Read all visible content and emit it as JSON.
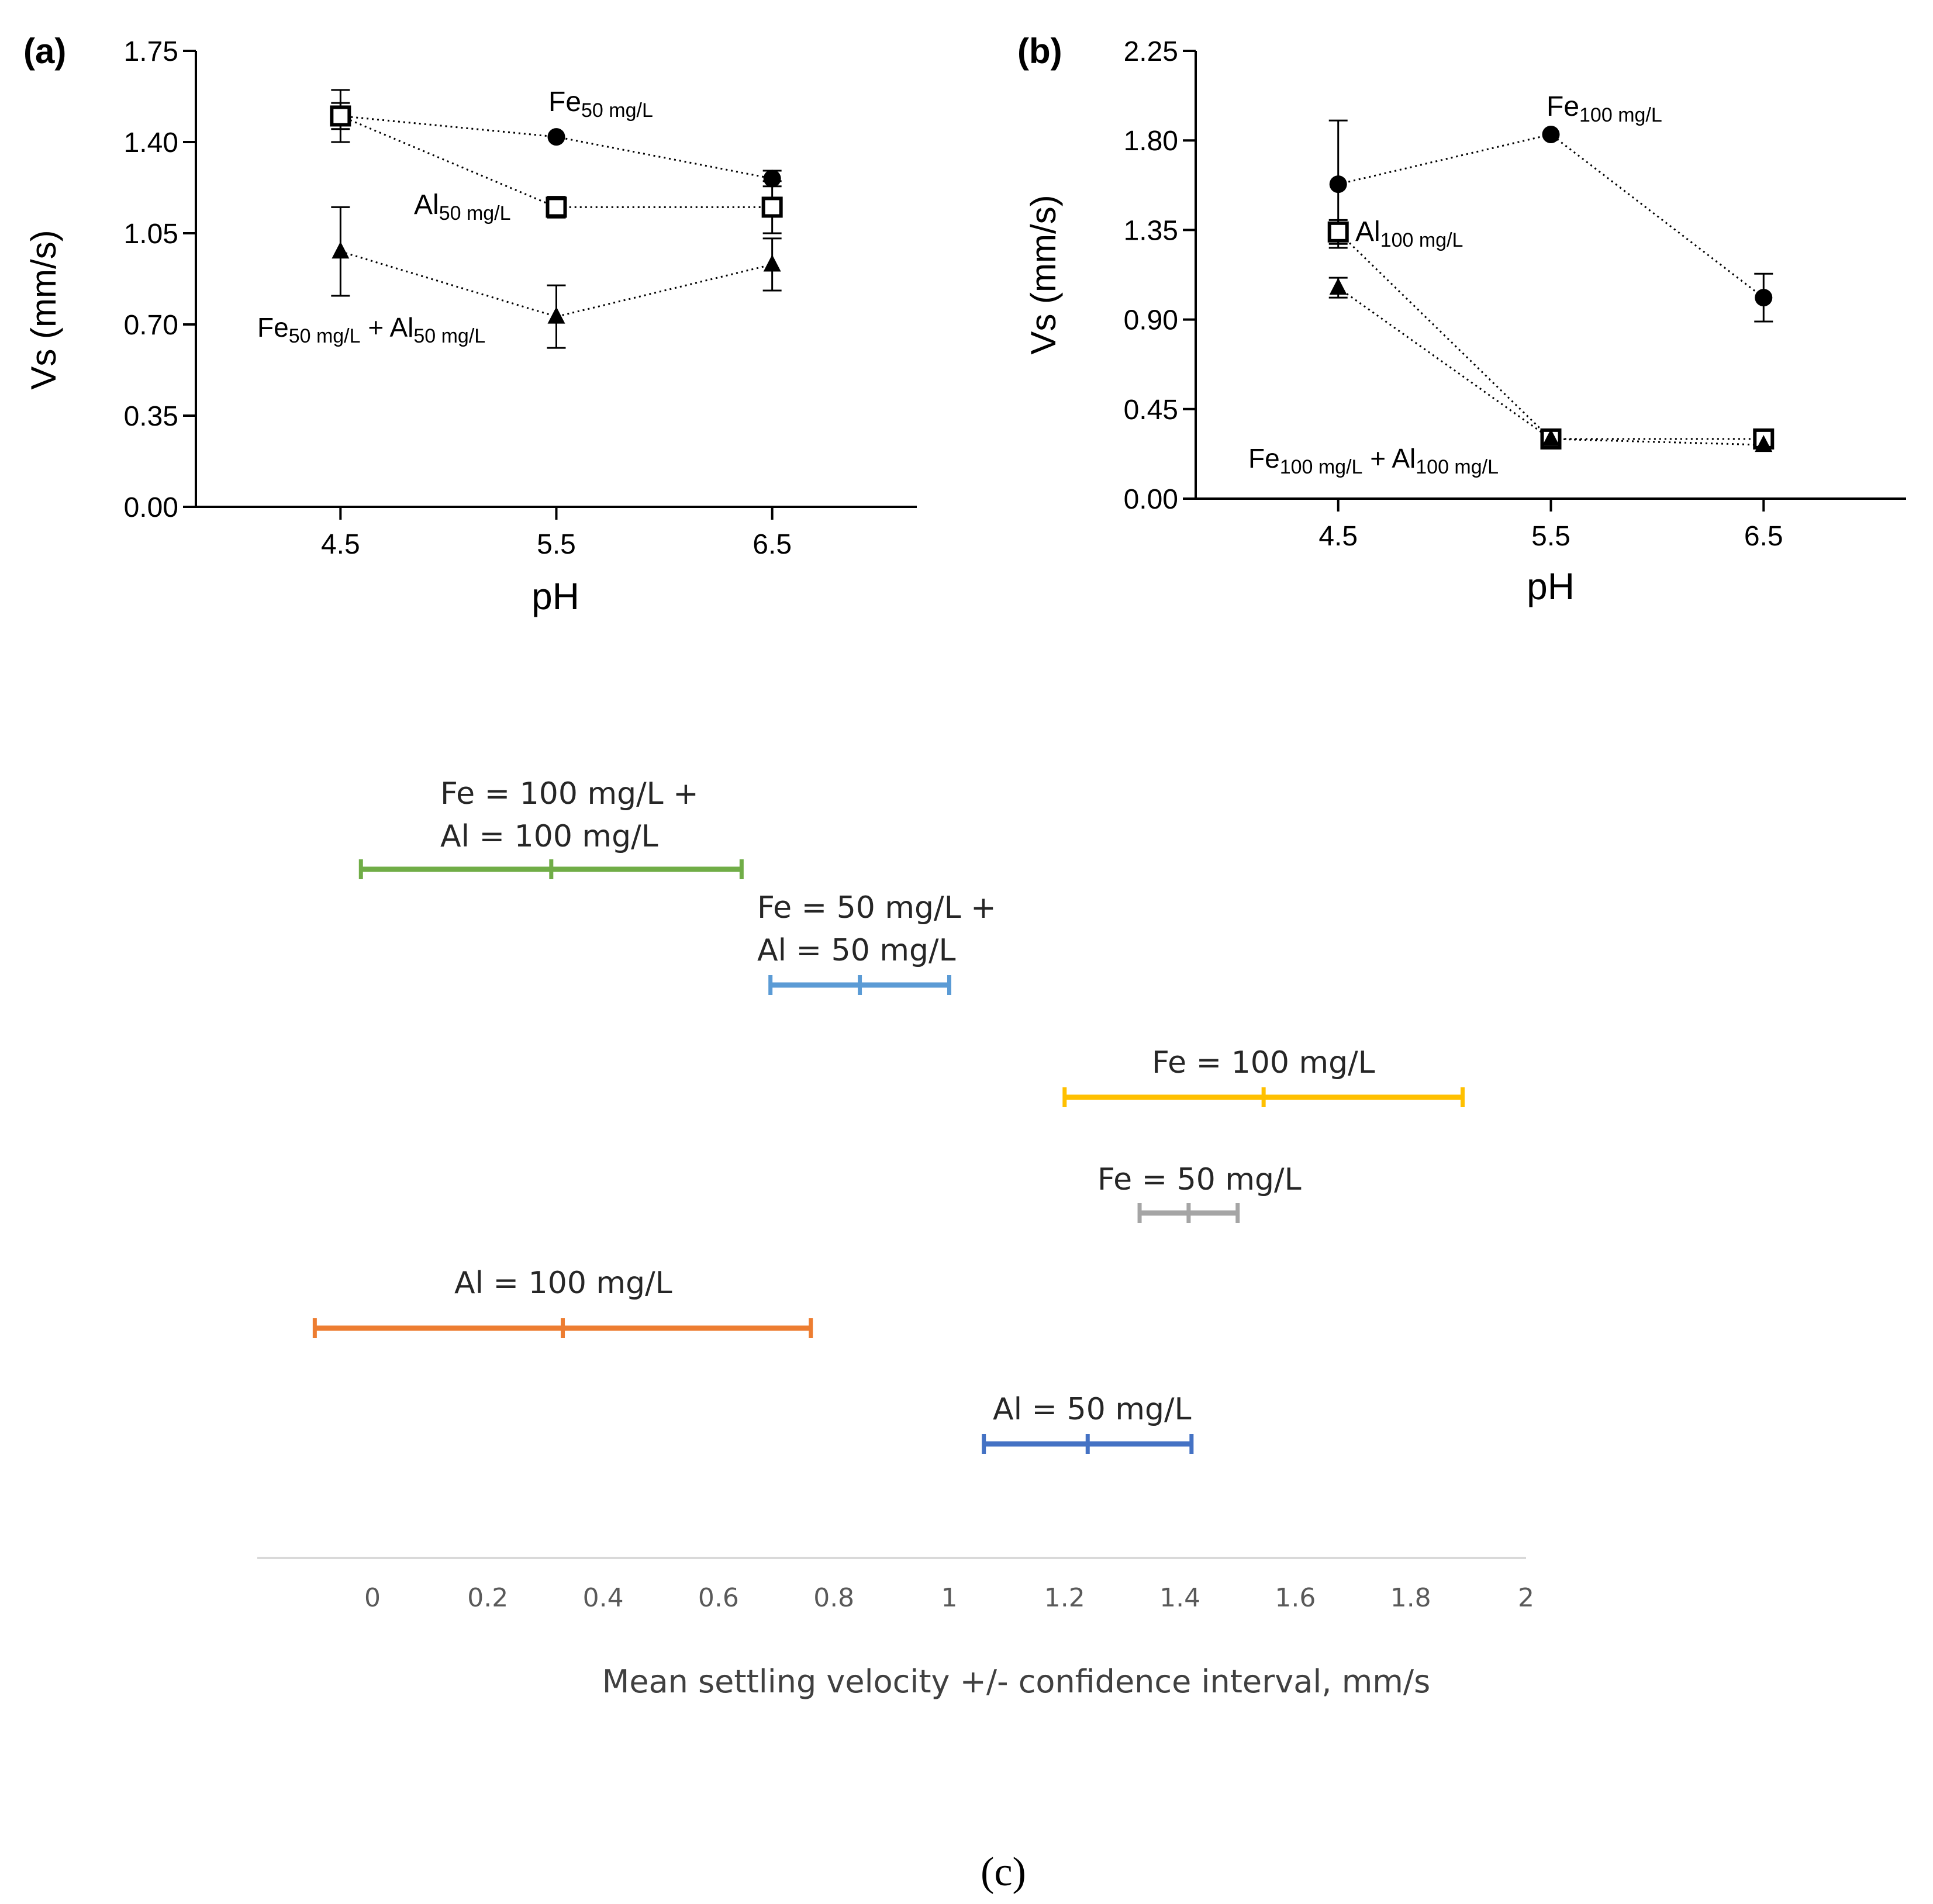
{
  "chart_data": [
    {
      "id": "a",
      "type": "line",
      "panel_label": "(a)",
      "xlabel": "pH",
      "ylabel": "Vs (mm/s)",
      "x": [
        4.5,
        5.5,
        6.5
      ],
      "xticks": [
        "4.5",
        "5.5",
        "6.5"
      ],
      "xlim": [
        3.83,
        7.17
      ],
      "ylim": [
        0,
        1.75
      ],
      "yticks": [
        "0.00",
        "0.35",
        "0.70",
        "1.05",
        "1.40",
        "1.75"
      ],
      "series": [
        {
          "name": "Fe50 mg/L",
          "base": "Fe",
          "sub": "50 mg/L",
          "marker": "circle",
          "values": [
            1.5,
            1.42,
            1.26
          ],
          "err": [
            0.05,
            0.0,
            0.03
          ]
        },
        {
          "name": "Al50 mg/L",
          "base": "Al",
          "sub": "50 mg/L",
          "marker": "square",
          "values": [
            1.5,
            1.15,
            1.15
          ],
          "err": [
            0.1,
            0.04,
            0.1
          ]
        },
        {
          "name": "Fe50 mg/L + Al50 mg/L",
          "base1": "Fe",
          "sub1": "50 mg/L",
          "base2": "Al",
          "sub2": "50 mg/L",
          "marker": "triangle",
          "values": [
            0.98,
            0.73,
            0.93
          ],
          "err": [
            0.17,
            0.12,
            0.1
          ]
        }
      ]
    },
    {
      "id": "b",
      "type": "line",
      "panel_label": "(b)",
      "xlabel": "pH",
      "ylabel": "Vs (mm/s)",
      "x": [
        4.5,
        5.5,
        6.5
      ],
      "xticks": [
        "4.5",
        "5.5",
        "6.5"
      ],
      "xlim": [
        3.83,
        7.17
      ],
      "ylim": [
        0,
        2.25
      ],
      "yticks": [
        "0.00",
        "0.45",
        "0.90",
        "1.35",
        "1.80",
        "2.25"
      ],
      "series": [
        {
          "name": "Fe100 mg/L",
          "base": "Fe",
          "sub": "100 mg/L",
          "marker": "circle",
          "values": [
            1.58,
            1.83,
            1.01
          ],
          "err": [
            0.32,
            0.0,
            0.12
          ]
        },
        {
          "name": "Al100 mg/L",
          "base": "Al",
          "sub": "100 mg/L",
          "marker": "square",
          "values": [
            1.34,
            0.3,
            0.3
          ],
          "err": [
            0.06,
            0.0,
            0.0
          ]
        },
        {
          "name": "Fe100 mg/L + Al100 mg/L",
          "base1": "Fe",
          "sub1": "100 mg/L",
          "base2": "Al",
          "sub2": "100 mg/L",
          "marker": "triangle",
          "values": [
            1.06,
            0.3,
            0.27
          ],
          "err": [
            0.05,
            0.0,
            0.0
          ]
        }
      ]
    },
    {
      "id": "c",
      "type": "interval",
      "panel_label": "(c)",
      "xlabel": "Mean settling velocity +/- confidence interval, mm/s",
      "xlim": [
        -0.2,
        2.0
      ],
      "xticks": [
        "0",
        "0.2",
        "0.4",
        "0.6",
        "0.8",
        "1",
        "1.2",
        "1.4",
        "1.6",
        "1.8",
        "2"
      ],
      "series": [
        {
          "name": "Fe = 100 mg/L + Al = 100 mg/L",
          "label_lines": [
            "Fe = 100 mg/L +",
            "Al = 100 mg/L"
          ],
          "color": "#70ad47",
          "low": -0.02,
          "mean": 0.31,
          "high": 0.64
        },
        {
          "name": "Fe = 50 mg/L + Al = 50 mg/L",
          "label_lines": [
            "Fe = 50 mg/L +",
            "Al = 50 mg/L"
          ],
          "color": "#5b9bd5",
          "low": 0.69,
          "mean": 0.845,
          "high": 1.0
        },
        {
          "name": "Fe = 100 mg/L",
          "label_lines": [
            "Fe = 100 mg/L"
          ],
          "color": "#ffc000",
          "low": 1.2,
          "mean": 1.545,
          "high": 1.89
        },
        {
          "name": "Fe = 50 mg/L",
          "label_lines": [
            "Fe = 50 mg/L"
          ],
          "color": "#a5a5a5",
          "low": 1.33,
          "mean": 1.415,
          "high": 1.5
        },
        {
          "name": "Al = 100 mg/L",
          "label_lines": [
            "Al = 100 mg/L"
          ],
          "color": "#ed7d31",
          "low": -0.1,
          "mean": 0.33,
          "high": 0.76
        },
        {
          "name": "Al = 50 mg/L",
          "label_lines": [
            "Al = 50 mg/L"
          ],
          "color": "#4472c4",
          "low": 1.06,
          "mean": 1.24,
          "high": 1.42
        }
      ]
    }
  ]
}
